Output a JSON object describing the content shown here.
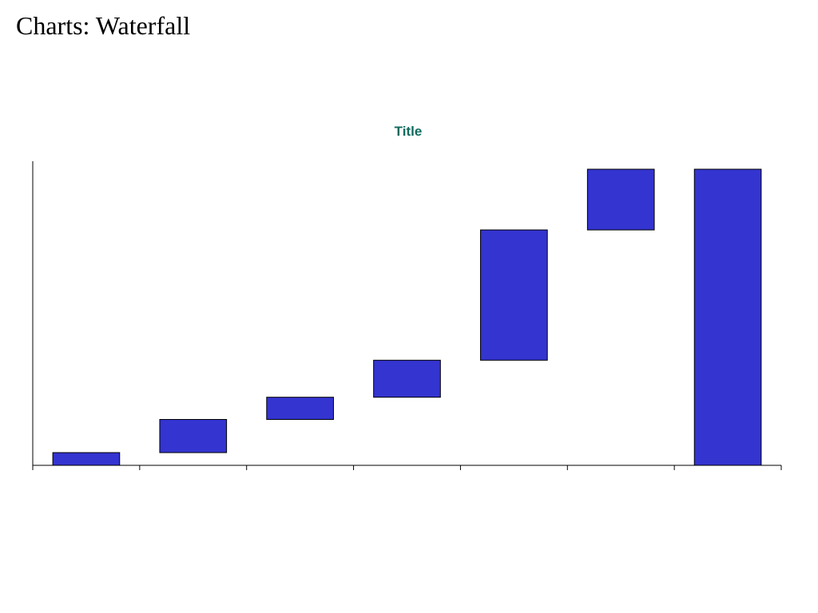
{
  "page": {
    "title": "Charts: Waterfall"
  },
  "colors": {
    "bar_fill": "#3434d0",
    "bar_stroke": "#000000",
    "title_color": "#0f6b5e",
    "axis_color": "#000000"
  },
  "chart_data": {
    "type": "bar",
    "subtype": "waterfall",
    "title": "Title",
    "xlabel": "",
    "ylabel": "",
    "grid": false,
    "legend": "none",
    "ylim": [
      0,
      100
    ],
    "categories": [
      "",
      "",
      "",
      "",
      "",
      "",
      ""
    ],
    "bars": [
      {
        "start": 0,
        "end": 4.3,
        "total": false
      },
      {
        "start": 4.3,
        "end": 15.5,
        "total": false
      },
      {
        "start": 15.5,
        "end": 23,
        "total": false
      },
      {
        "start": 23,
        "end": 35.5,
        "total": false
      },
      {
        "start": 35.5,
        "end": 79.5,
        "total": false
      },
      {
        "start": 79.5,
        "end": 100,
        "total": false
      },
      {
        "start": 0,
        "end": 100,
        "total": true
      }
    ]
  }
}
